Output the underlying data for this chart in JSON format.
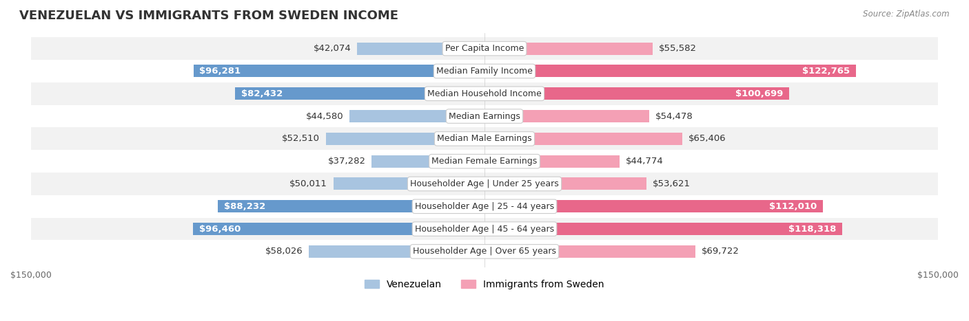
{
  "title": "VENEZUELAN VS IMMIGRANTS FROM SWEDEN INCOME",
  "source": "Source: ZipAtlas.com",
  "categories": [
    "Per Capita Income",
    "Median Family Income",
    "Median Household Income",
    "Median Earnings",
    "Median Male Earnings",
    "Median Female Earnings",
    "Householder Age | Under 25 years",
    "Householder Age | 25 - 44 years",
    "Householder Age | 45 - 64 years",
    "Householder Age | Over 65 years"
  ],
  "venezuelan_values": [
    42074,
    96281,
    82432,
    44580,
    52510,
    37282,
    50011,
    88232,
    96460,
    58026
  ],
  "sweden_values": [
    55582,
    122765,
    100699,
    54478,
    65406,
    44774,
    53621,
    112010,
    118318,
    69722
  ],
  "venezuelan_labels": [
    "$42,074",
    "$96,281",
    "$82,432",
    "$44,580",
    "$52,510",
    "$37,282",
    "$50,011",
    "$88,232",
    "$96,460",
    "$58,026"
  ],
  "sweden_labels": [
    "$55,582",
    "$122,765",
    "$100,699",
    "$54,478",
    "$65,406",
    "$44,774",
    "$53,621",
    "$112,010",
    "$118,318",
    "$69,722"
  ],
  "venezuelan_color": "#a8c4e0",
  "venezuela_highlight_color": "#6699cc",
  "sweden_color": "#f4a0b5",
  "sweden_highlight_color": "#e8678a",
  "venezuelan_highlight": [
    1,
    2,
    7,
    8
  ],
  "sweden_highlight": [
    1,
    2,
    7,
    8
  ],
  "max_value": 150000,
  "bar_height": 0.55,
  "row_bg_colors": [
    "#f2f2f2",
    "#ffffff"
  ],
  "label_fontsize": 9.5,
  "category_fontsize": 9,
  "title_fontsize": 13,
  "legend_fontsize": 10
}
